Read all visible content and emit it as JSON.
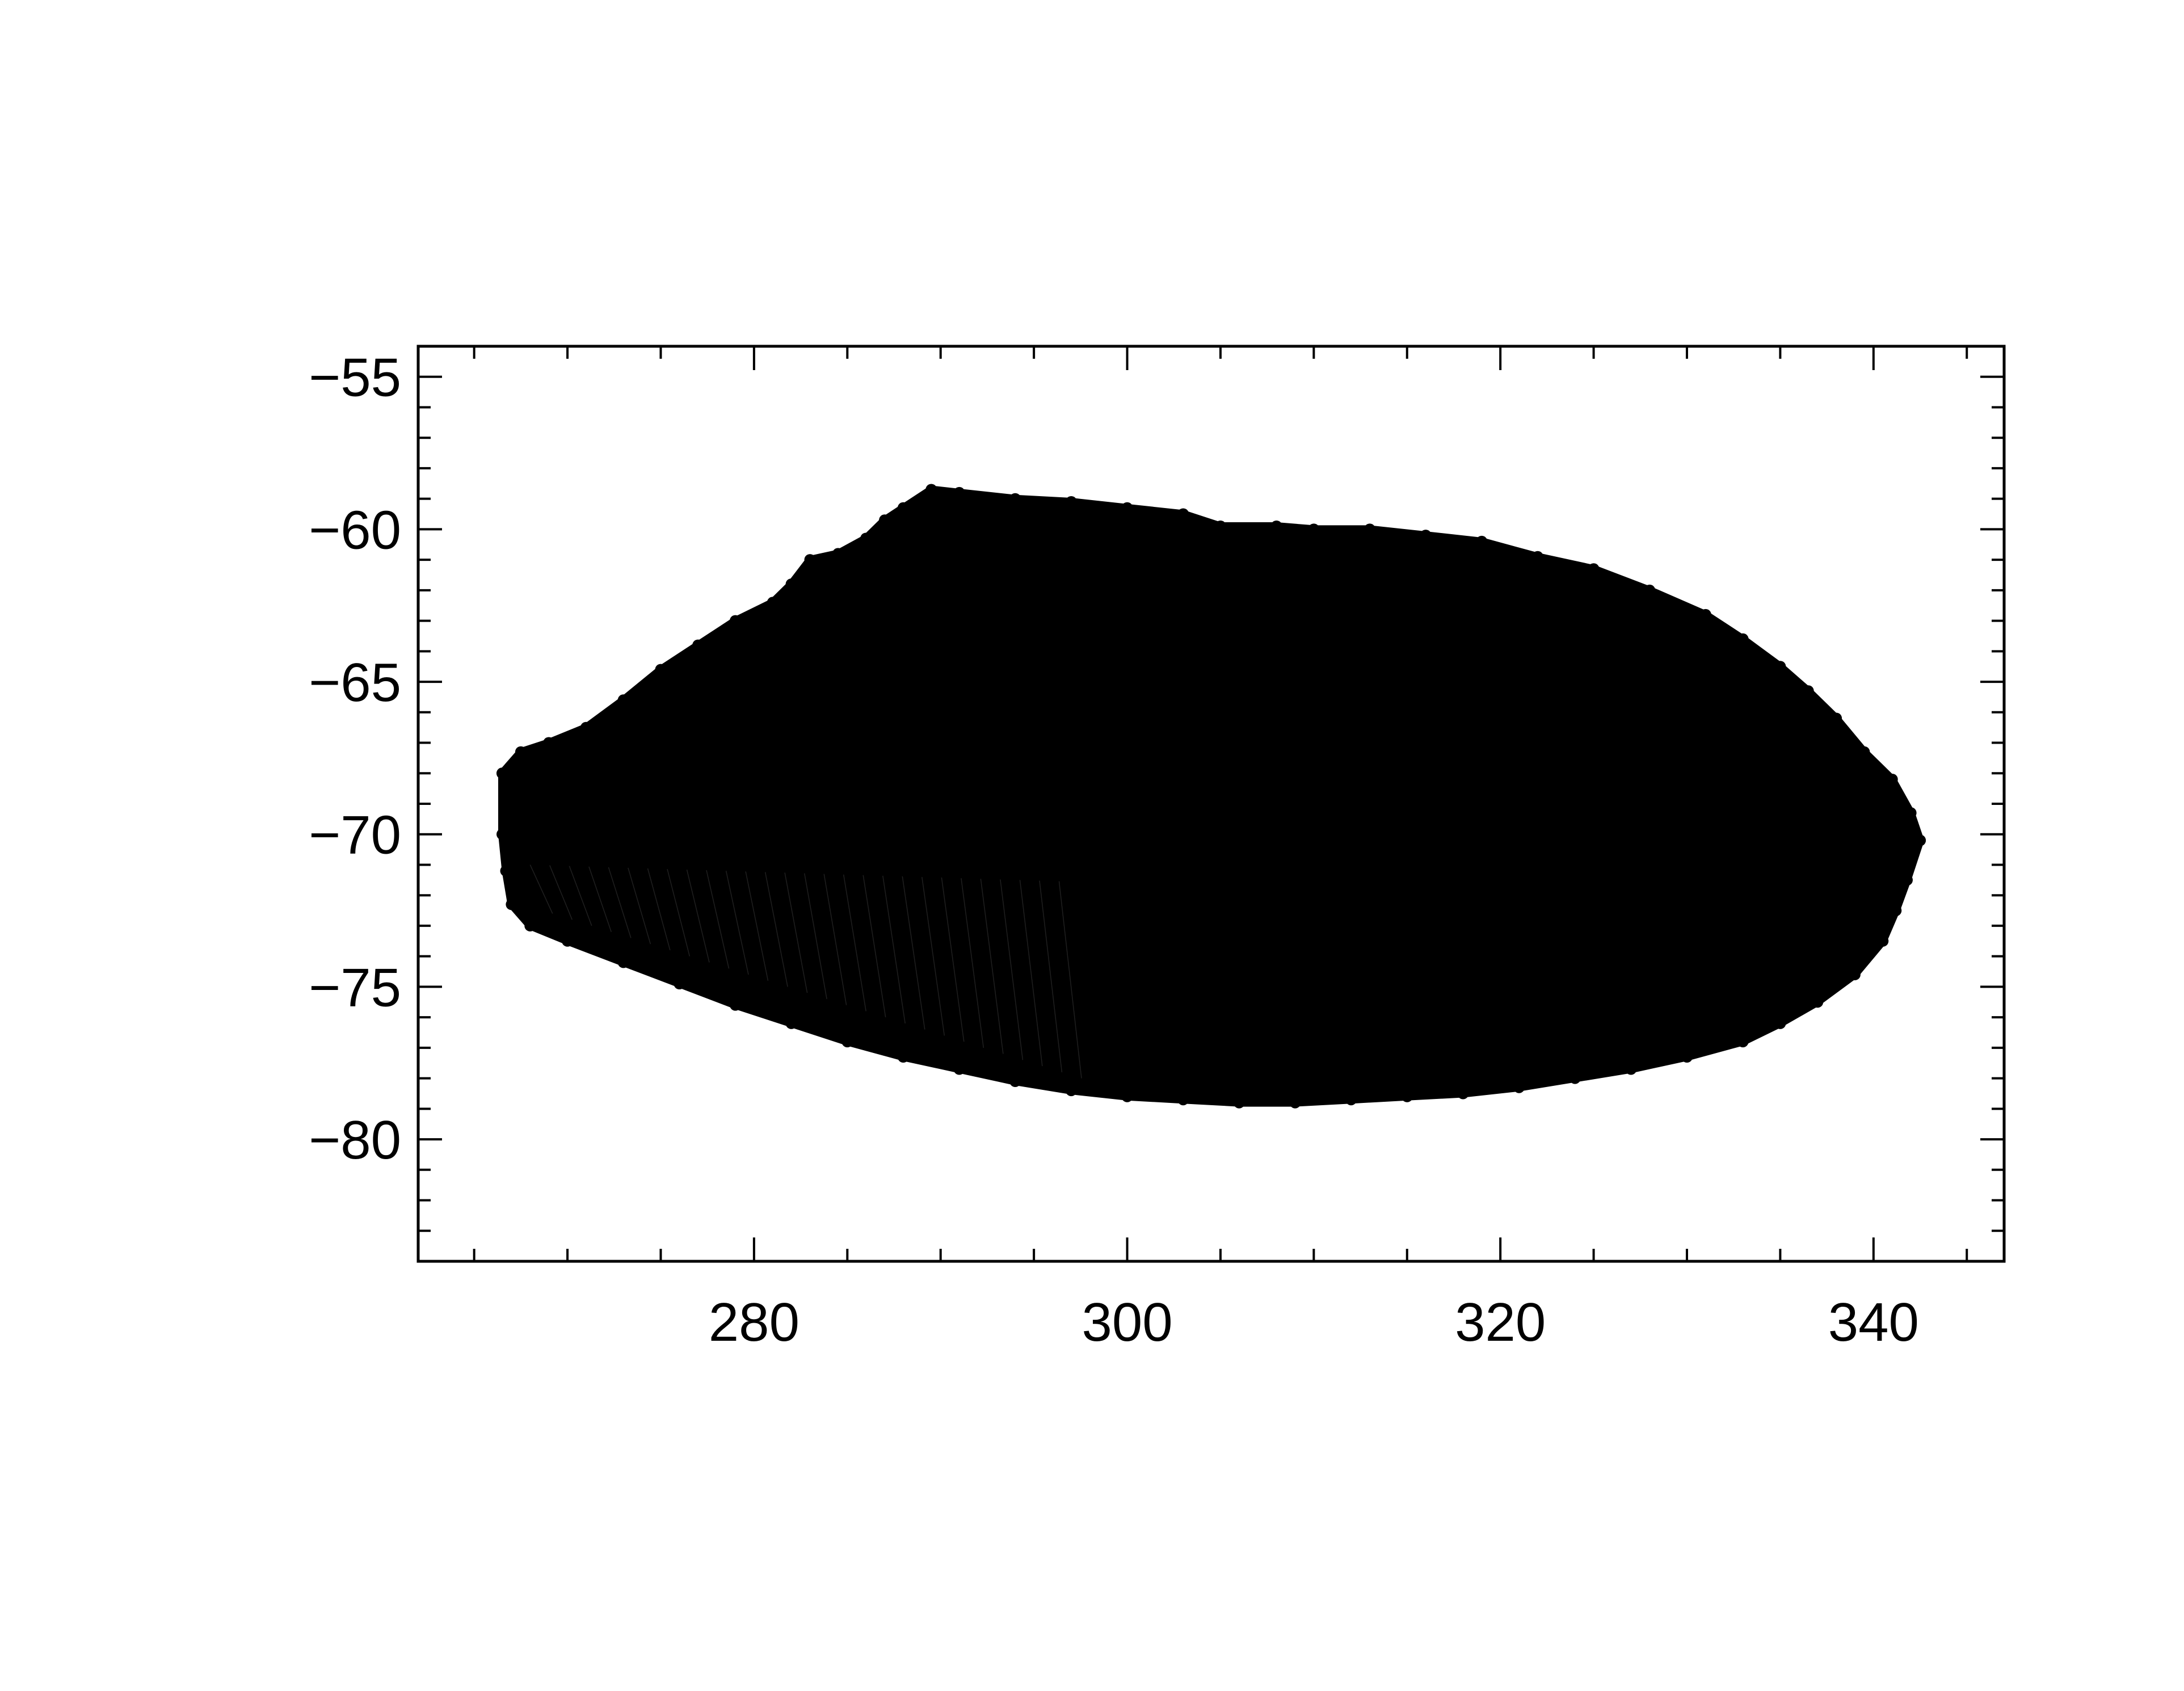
{
  "chart_data": {
    "type": "scatter",
    "title": "",
    "xlabel": "",
    "ylabel": "",
    "xlim": [
      262,
      347
    ],
    "ylim": [
      -84,
      -54
    ],
    "grid": false,
    "legend": "none",
    "marker_color": "#000000",
    "x_ticks": [
      280,
      300,
      320,
      340
    ],
    "y_ticks": [
      -55,
      -60,
      -65,
      -70,
      -75,
      -80
    ],
    "x_tick_labels": [
      "280",
      "300",
      "320",
      "340"
    ],
    "y_tick_labels": [
      "−55",
      "−60",
      "−65",
      "−70",
      "−75",
      "−80"
    ],
    "x_minor_step": 5,
    "y_minor_step": 1,
    "series": [
      {
        "description_of_shape": "dense point cloud",
        "upper_boundary": [
          [
            266.5,
            -68.0
          ],
          [
            267.5,
            -67.3
          ],
          [
            269,
            -67.0
          ],
          [
            271,
            -66.5
          ],
          [
            273,
            -65.6
          ],
          [
            275,
            -64.6
          ],
          [
            277,
            -63.8
          ],
          [
            279,
            -63.0
          ],
          [
            281,
            -62.4
          ],
          [
            282,
            -61.8
          ],
          [
            283,
            -61.0
          ],
          [
            284.5,
            -60.8
          ],
          [
            286,
            -60.3
          ],
          [
            287,
            -59.7
          ],
          [
            288,
            -59.3
          ],
          [
            289.5,
            -58.7
          ],
          [
            291,
            -58.8
          ],
          [
            294,
            -59.0
          ],
          [
            297,
            -59.1
          ],
          [
            300,
            -59.3
          ],
          [
            303,
            -59.5
          ],
          [
            305,
            -59.9
          ],
          [
            308,
            -59.9
          ],
          [
            310,
            -60.0
          ],
          [
            313,
            -60.0
          ],
          [
            316,
            -60.2
          ],
          [
            319,
            -60.4
          ],
          [
            322,
            -60.9
          ],
          [
            325,
            -61.3
          ],
          [
            328,
            -62.0
          ],
          [
            331,
            -62.8
          ],
          [
            333,
            -63.6
          ],
          [
            335,
            -64.5
          ],
          [
            336.5,
            -65.3
          ],
          [
            338,
            -66.2
          ],
          [
            339.5,
            -67.3
          ],
          [
            341,
            -68.2
          ],
          [
            342,
            -69.3
          ],
          [
            342.5,
            -70.2
          ]
        ],
        "lower_boundary": [
          [
            342.5,
            -70.2
          ],
          [
            341.8,
            -71.5
          ],
          [
            341.2,
            -72.5
          ],
          [
            340.5,
            -73.5
          ],
          [
            339,
            -74.6
          ],
          [
            337,
            -75.5
          ],
          [
            335,
            -76.2
          ],
          [
            333,
            -76.8
          ],
          [
            330,
            -77.3
          ],
          [
            327,
            -77.7
          ],
          [
            324,
            -78.0
          ],
          [
            321,
            -78.3
          ],
          [
            318,
            -78.5
          ],
          [
            315,
            -78.6
          ],
          [
            312,
            -78.7
          ],
          [
            309,
            -78.8
          ],
          [
            306,
            -78.8
          ],
          [
            303,
            -78.7
          ],
          [
            300,
            -78.6
          ],
          [
            297,
            -78.4
          ],
          [
            294,
            -78.1
          ],
          [
            291,
            -77.7
          ],
          [
            288,
            -77.3
          ],
          [
            285,
            -76.8
          ],
          [
            282,
            -76.2
          ],
          [
            279,
            -75.6
          ],
          [
            276,
            -74.9
          ],
          [
            273,
            -74.2
          ],
          [
            270,
            -73.5
          ],
          [
            268,
            -73.0
          ],
          [
            267,
            -72.3
          ],
          [
            266.7,
            -71.2
          ],
          [
            266.5,
            -70.0
          ],
          [
            266.5,
            -68.0
          ]
        ]
      }
    ]
  }
}
